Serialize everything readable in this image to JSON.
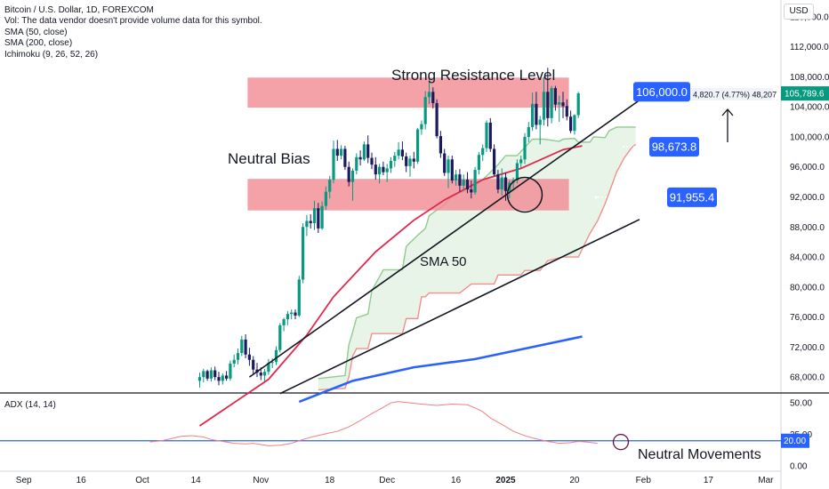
{
  "legend": {
    "symbol": "Bitcoin / U.S. Dollar, 1D, FOREXCOM",
    "vol": "Vol: The data vendor doesn't provide volume data for this symbol.",
    "sma50": "SMA (50, close)",
    "sma200": "SMA (200, close)",
    "ichimoku": "Ichimoku (9, 26, 52, 26)",
    "adx": "ADX (14, 14)"
  },
  "currency": "USD",
  "annotations": {
    "resistance_title": "Strong  Resistance Level",
    "neutral_bias": "Neutral Bias",
    "sma_label": "SMA 50",
    "neutral_movements": "Neutral Movements",
    "measure": "4,820.7 (4.77%) 48,207",
    "level_top": "106,000.0",
    "level_mid": "98,673.8",
    "level_low": "91,955.4",
    "last_price": "105,789.6",
    "adx_level": "20.00"
  },
  "colors": {
    "up": "#089981",
    "down": "#1a1a5e",
    "zone": "#f28c95",
    "sma50": "#e0284f",
    "sma200": "#2962ff",
    "cloud_fill": "#e7f4e7",
    "span_a": "#8fcc8f",
    "span_b": "#f0908c",
    "label_blue": "#2962ff",
    "price_green": "#089981",
    "adx_line": "#f08080",
    "adx_level_line": "#2962ff"
  },
  "chart_data": [
    {
      "type": "candlestick",
      "title": "Bitcoin / U.S. Dollar, 1D, FOREXCOM",
      "ylim": [
        66000,
        118000
      ],
      "y_ticks": [
        "116,000.0",
        "112,000.0",
        "108,000.0",
        "104,000.0",
        "100,000.0",
        "96,000.0",
        "92,000.0",
        "88,000.0",
        "84,000.0",
        "80,000.0",
        "76,000.0",
        "72,000.0",
        "68,000.0"
      ],
      "x_ticks": [
        "Sep",
        "16",
        "Oct",
        "14",
        "Nov",
        "18",
        "Dec",
        "16",
        "2025",
        "20",
        "Feb",
        "17",
        "Mar"
      ],
      "candles": [
        {
          "o": 67500,
          "h": 68600,
          "l": 66600,
          "c": 68000
        },
        {
          "o": 68000,
          "h": 69100,
          "l": 67300,
          "c": 68800
        },
        {
          "o": 68800,
          "h": 69000,
          "l": 67500,
          "c": 67800
        },
        {
          "o": 67800,
          "h": 69300,
          "l": 67400,
          "c": 68900
        },
        {
          "o": 68900,
          "h": 69400,
          "l": 67600,
          "c": 68000
        },
        {
          "o": 68000,
          "h": 68700,
          "l": 66900,
          "c": 67500
        },
        {
          "o": 67500,
          "h": 68500,
          "l": 67000,
          "c": 68200
        },
        {
          "o": 68200,
          "h": 68800,
          "l": 67500,
          "c": 67800
        },
        {
          "o": 67800,
          "h": 70200,
          "l": 67500,
          "c": 69800
        },
        {
          "o": 69800,
          "h": 71000,
          "l": 69300,
          "c": 70300
        },
        {
          "o": 70300,
          "h": 71800,
          "l": 69700,
          "c": 71200
        },
        {
          "o": 71200,
          "h": 73500,
          "l": 70800,
          "c": 73000
        },
        {
          "o": 73000,
          "h": 73700,
          "l": 70500,
          "c": 71000
        },
        {
          "o": 71000,
          "h": 71900,
          "l": 69500,
          "c": 70300
        },
        {
          "o": 70300,
          "h": 70800,
          "l": 68400,
          "c": 69000
        },
        {
          "o": 69000,
          "h": 69900,
          "l": 68000,
          "c": 68600
        },
        {
          "o": 68600,
          "h": 69300,
          "l": 67600,
          "c": 68200
        },
        {
          "o": 68200,
          "h": 69100,
          "l": 67400,
          "c": 68700
        },
        {
          "o": 68700,
          "h": 70400,
          "l": 68300,
          "c": 69900
        },
        {
          "o": 69900,
          "h": 70500,
          "l": 69200,
          "c": 70000
        },
        {
          "o": 70000,
          "h": 72100,
          "l": 69600,
          "c": 71600
        },
        {
          "o": 71600,
          "h": 75200,
          "l": 71300,
          "c": 74900
        },
        {
          "o": 74900,
          "h": 75900,
          "l": 74100,
          "c": 75700
        },
        {
          "o": 75700,
          "h": 76800,
          "l": 74900,
          "c": 76400
        },
        {
          "o": 76400,
          "h": 77000,
          "l": 75700,
          "c": 76600
        },
        {
          "o": 76600,
          "h": 77000,
          "l": 75700,
          "c": 76200
        },
        {
          "o": 76200,
          "h": 81500,
          "l": 76000,
          "c": 81000
        },
        {
          "o": 81000,
          "h": 88500,
          "l": 80500,
          "c": 88000
        },
        {
          "o": 88000,
          "h": 89600,
          "l": 86800,
          "c": 88800
        },
        {
          "o": 88800,
          "h": 89700,
          "l": 87800,
          "c": 88500
        },
        {
          "o": 88500,
          "h": 91500,
          "l": 87600,
          "c": 90500
        },
        {
          "o": 90500,
          "h": 91200,
          "l": 87200,
          "c": 87800
        },
        {
          "o": 87800,
          "h": 91400,
          "l": 87600,
          "c": 90800
        },
        {
          "o": 90800,
          "h": 93400,
          "l": 90300,
          "c": 92700
        },
        {
          "o": 92700,
          "h": 94800,
          "l": 91800,
          "c": 94300
        },
        {
          "o": 94300,
          "h": 99500,
          "l": 93800,
          "c": 98400
        },
        {
          "o": 98400,
          "h": 99600,
          "l": 96800,
          "c": 97500
        },
        {
          "o": 97500,
          "h": 98900,
          "l": 97000,
          "c": 98400
        },
        {
          "o": 98400,
          "h": 98800,
          "l": 95600,
          "c": 96000
        },
        {
          "o": 96000,
          "h": 96700,
          "l": 93400,
          "c": 94000
        },
        {
          "o": 94000,
          "h": 95800,
          "l": 91500,
          "c": 95500
        },
        {
          "o": 95500,
          "h": 97800,
          "l": 95000,
          "c": 97300
        },
        {
          "o": 97300,
          "h": 98200,
          "l": 96200,
          "c": 97000
        },
        {
          "o": 97000,
          "h": 99400,
          "l": 96800,
          "c": 99000
        },
        {
          "o": 99000,
          "h": 100200,
          "l": 96500,
          "c": 97200
        },
        {
          "o": 97200,
          "h": 97900,
          "l": 95700,
          "c": 96300
        },
        {
          "o": 96300,
          "h": 97300,
          "l": 94300,
          "c": 95000
        },
        {
          "o": 95000,
          "h": 96400,
          "l": 93800,
          "c": 96000
        },
        {
          "o": 96000,
          "h": 96700,
          "l": 94900,
          "c": 95300
        },
        {
          "o": 95300,
          "h": 96400,
          "l": 94000,
          "c": 95800
        },
        {
          "o": 95800,
          "h": 97300,
          "l": 95200,
          "c": 96800
        },
        {
          "o": 96800,
          "h": 98000,
          "l": 96000,
          "c": 97500
        },
        {
          "o": 97500,
          "h": 99300,
          "l": 97000,
          "c": 98300
        },
        {
          "o": 98300,
          "h": 99400,
          "l": 96900,
          "c": 97400
        },
        {
          "o": 97400,
          "h": 97900,
          "l": 95300,
          "c": 96100
        },
        {
          "o": 96100,
          "h": 97500,
          "l": 94700,
          "c": 97100
        },
        {
          "o": 97100,
          "h": 98000,
          "l": 95800,
          "c": 96700
        },
        {
          "o": 96700,
          "h": 101200,
          "l": 96400,
          "c": 101000
        },
        {
          "o": 101000,
          "h": 102200,
          "l": 100300,
          "c": 101700
        },
        {
          "o": 101700,
          "h": 106100,
          "l": 101000,
          "c": 105300
        },
        {
          "o": 105300,
          "h": 107700,
          "l": 104400,
          "c": 106000
        },
        {
          "o": 106000,
          "h": 106600,
          "l": 103800,
          "c": 104500
        },
        {
          "o": 104500,
          "h": 105000,
          "l": 99800,
          "c": 100100
        },
        {
          "o": 100100,
          "h": 100800,
          "l": 97200,
          "c": 97800
        },
        {
          "o": 97800,
          "h": 98400,
          "l": 94800,
          "c": 95200
        },
        {
          "o": 95200,
          "h": 97500,
          "l": 93200,
          "c": 97000
        },
        {
          "o": 97000,
          "h": 97500,
          "l": 93800,
          "c": 94200
        },
        {
          "o": 94200,
          "h": 95600,
          "l": 93500,
          "c": 95000
        },
        {
          "o": 95000,
          "h": 95700,
          "l": 92700,
          "c": 93500
        },
        {
          "o": 93500,
          "h": 95000,
          "l": 92900,
          "c": 94300
        },
        {
          "o": 94300,
          "h": 95300,
          "l": 92500,
          "c": 93000
        },
        {
          "o": 93000,
          "h": 94200,
          "l": 91800,
          "c": 92600
        },
        {
          "o": 92600,
          "h": 96000,
          "l": 92300,
          "c": 95600
        },
        {
          "o": 95600,
          "h": 98000,
          "l": 95000,
          "c": 97600
        },
        {
          "o": 97600,
          "h": 99000,
          "l": 96800,
          "c": 98500
        },
        {
          "o": 98500,
          "h": 102200,
          "l": 98000,
          "c": 101900
        },
        {
          "o": 101900,
          "h": 102500,
          "l": 98000,
          "c": 98400
        },
        {
          "o": 98400,
          "h": 99000,
          "l": 94800,
          "c": 95000
        },
        {
          "o": 95000,
          "h": 95600,
          "l": 92500,
          "c": 93000
        },
        {
          "o": 93000,
          "h": 95800,
          "l": 92200,
          "c": 94600
        },
        {
          "o": 94600,
          "h": 95200,
          "l": 91500,
          "c": 92800
        },
        {
          "o": 92800,
          "h": 94200,
          "l": 91800,
          "c": 93900
        },
        {
          "o": 93900,
          "h": 94600,
          "l": 92900,
          "c": 94200
        },
        {
          "o": 94200,
          "h": 97000,
          "l": 93800,
          "c": 96500
        },
        {
          "o": 96500,
          "h": 97500,
          "l": 95900,
          "c": 97000
        },
        {
          "o": 97000,
          "h": 100500,
          "l": 96400,
          "c": 100000
        },
        {
          "o": 100000,
          "h": 102000,
          "l": 99300,
          "c": 101300
        },
        {
          "o": 101300,
          "h": 105900,
          "l": 100800,
          "c": 104400
        },
        {
          "o": 104400,
          "h": 106000,
          "l": 101000,
          "c": 101600
        },
        {
          "o": 101600,
          "h": 102800,
          "l": 99000,
          "c": 102300
        },
        {
          "o": 102300,
          "h": 108000,
          "l": 101500,
          "c": 106000
        },
        {
          "o": 106000,
          "h": 109200,
          "l": 101400,
          "c": 102500
        },
        {
          "o": 102500,
          "h": 106800,
          "l": 101800,
          "c": 106500
        },
        {
          "o": 106500,
          "h": 106800,
          "l": 103500,
          "c": 104300
        },
        {
          "o": 104300,
          "h": 105500,
          "l": 102000,
          "c": 104600
        },
        {
          "o": 104600,
          "h": 106000,
          "l": 102500,
          "c": 104100
        },
        {
          "o": 104100,
          "h": 105000,
          "l": 102200,
          "c": 102700
        },
        {
          "o": 102700,
          "h": 103500,
          "l": 100500,
          "c": 100800
        },
        {
          "o": 100800,
          "h": 103000,
          "l": 100300,
          "c": 102900
        },
        {
          "o": 102900,
          "h": 106000,
          "l": 102500,
          "c": 105790
        }
      ],
      "sma50": [
        [
          0,
          61500
        ],
        [
          18,
          67700
        ],
        [
          28,
          73600
        ],
        [
          35,
          78700
        ],
        [
          46,
          84700
        ],
        [
          56,
          88900
        ],
        [
          64,
          91600
        ],
        [
          74,
          94300
        ],
        [
          84,
          95800
        ],
        [
          95,
          98300
        ],
        [
          100,
          98800
        ]
      ],
      "sma200": [
        [
          26,
          64700
        ],
        [
          40,
          67500
        ],
        [
          56,
          69300
        ],
        [
          72,
          70400
        ],
        [
          100,
          73400
        ]
      ],
      "ichimoku_span_a": [
        [
          31,
          67800
        ],
        [
          38,
          68200
        ],
        [
          39,
          72300
        ],
        [
          40,
          74000
        ],
        [
          41,
          75900
        ],
        [
          44,
          76400
        ],
        [
          45,
          79500
        ],
        [
          48,
          82300
        ],
        [
          53,
          82300
        ],
        [
          54,
          85400
        ],
        [
          57,
          86900
        ],
        [
          59,
          87800
        ],
        [
          60,
          89500
        ],
        [
          64,
          91000
        ],
        [
          66,
          92200
        ],
        [
          71,
          93100
        ],
        [
          74,
          94300
        ],
        [
          78,
          96300
        ],
        [
          80,
          97500
        ],
        [
          83,
          97500
        ],
        [
          85,
          98600
        ],
        [
          87,
          99700
        ],
        [
          90,
          99700
        ],
        [
          94,
          99400
        ],
        [
          95,
          99700
        ],
        [
          98,
          99800
        ],
        [
          99,
          99300
        ],
        [
          102,
          99300
        ],
        [
          103,
          100000
        ],
        [
          106,
          99900
        ],
        [
          107,
          100800
        ],
        [
          109,
          101300
        ],
        [
          112,
          101300
        ],
        [
          114,
          101300
        ]
      ],
      "ichimoku_span_b": [
        [
          31,
          66300
        ],
        [
          38,
          66500
        ],
        [
          39,
          68000
        ],
        [
          40,
          70800
        ],
        [
          41,
          71800
        ],
        [
          44,
          71800
        ],
        [
          45,
          73800
        ],
        [
          53,
          73800
        ],
        [
          54,
          75800
        ],
        [
          57,
          75800
        ],
        [
          58,
          78700
        ],
        [
          59,
          78700
        ],
        [
          60,
          79200
        ],
        [
          68,
          79200
        ],
        [
          71,
          80400
        ],
        [
          77,
          80400
        ],
        [
          78,
          81600
        ],
        [
          84,
          81600
        ],
        [
          85,
          82200
        ],
        [
          89,
          82200
        ],
        [
          91,
          83500
        ],
        [
          95,
          84000
        ],
        [
          99,
          84000
        ],
        [
          102,
          87100
        ],
        [
          104,
          88800
        ],
        [
          106,
          91100
        ],
        [
          107,
          92500
        ],
        [
          109,
          95300
        ],
        [
          111,
          97200
        ],
        [
          113,
          98600
        ],
        [
          114,
          99000
        ]
      ],
      "trendlines": [
        {
          "from": [
            13,
            68000
          ],
          "to": [
            115,
            104900
          ]
        },
        {
          "from": [
            21,
            65800
          ],
          "to": [
            115,
            89000
          ]
        }
      ],
      "zones": [
        {
          "from_bar": 13,
          "to_bar": 97,
          "low": 103900,
          "high": 107900
        },
        {
          "from_bar": 13,
          "to_bar": 97,
          "low": 90200,
          "high": 94400
        }
      ],
      "level_labels": [
        106000,
        98673.8,
        91955.4
      ],
      "last_price": 105789.6
    },
    {
      "type": "line",
      "title": "ADX (14, 14)",
      "ylim": [
        -2,
        55
      ],
      "y_ticks": [
        "50.00",
        "25.00",
        "0.00"
      ],
      "level": 20,
      "values": [
        [
          -13,
          19
        ],
        [
          -10,
          20
        ],
        [
          -7,
          22
        ],
        [
          -5,
          23.5
        ],
        [
          -2,
          24
        ],
        [
          1,
          23
        ],
        [
          3,
          21
        ],
        [
          6,
          19.5
        ],
        [
          9,
          18
        ],
        [
          12,
          17.5
        ],
        [
          14,
          18
        ],
        [
          16,
          17
        ],
        [
          18,
          16
        ],
        [
          21,
          16.5
        ],
        [
          24,
          18
        ],
        [
          27,
          21
        ],
        [
          30,
          23.5
        ],
        [
          33,
          25.5
        ],
        [
          36,
          27.5
        ],
        [
          39,
          31
        ],
        [
          42,
          36
        ],
        [
          45,
          41.5
        ],
        [
          48,
          46.5
        ],
        [
          50,
          50
        ],
        [
          52,
          51
        ],
        [
          55,
          50
        ],
        [
          58,
          49
        ],
        [
          62,
          48
        ],
        [
          66,
          49
        ],
        [
          70,
          48.5
        ],
        [
          72,
          46
        ],
        [
          74,
          43
        ],
        [
          76,
          38
        ],
        [
          79,
          33
        ],
        [
          82,
          27.5
        ],
        [
          85,
          24
        ],
        [
          88,
          21.5
        ],
        [
          91,
          19.5
        ],
        [
          94,
          18
        ],
        [
          97,
          18.5
        ],
        [
          99,
          19.5
        ],
        [
          101,
          19
        ],
        [
          104,
          18
        ]
      ]
    }
  ]
}
